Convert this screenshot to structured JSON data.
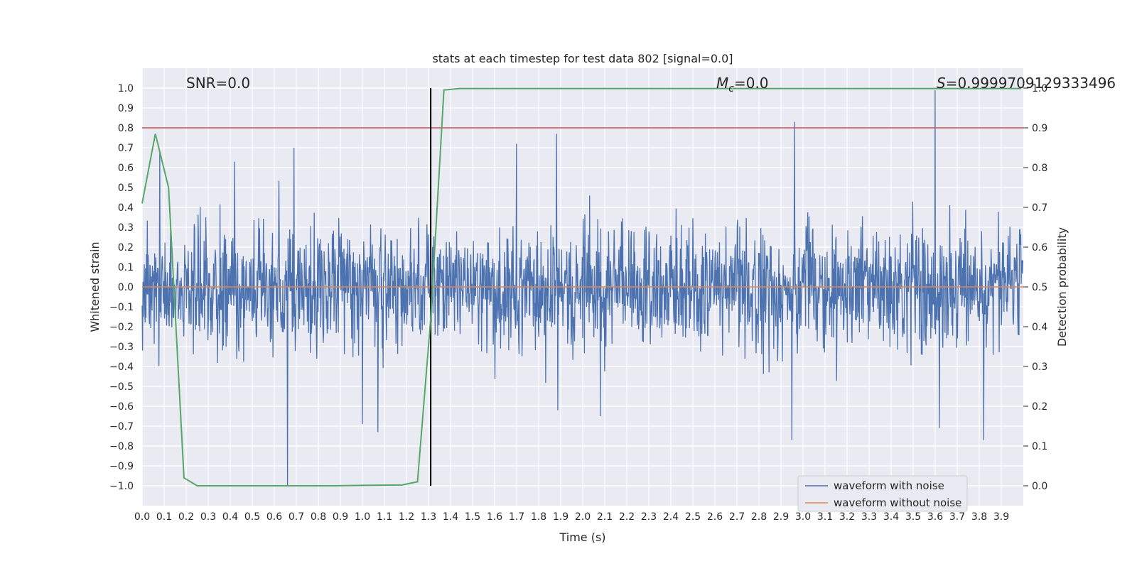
{
  "chart_data": {
    "type": "line",
    "title": "stats at each timestep for test data 802 [signal=0.0]",
    "xlabel": "Time (s)",
    "ylabel": "Whitened strain",
    "y2label": "Detection probability",
    "xlim": [
      0.0,
      4.0
    ],
    "ylim": [
      -1.1,
      1.1
    ],
    "y2lim": [
      -0.05,
      1.05
    ],
    "x_ticks": [
      0.0,
      0.1,
      0.2,
      0.3,
      0.4,
      0.5,
      0.6,
      0.7,
      0.8,
      0.9,
      1.0,
      1.1,
      1.2,
      1.3,
      1.4,
      1.5,
      1.6,
      1.7,
      1.8,
      1.9,
      2.0,
      2.1,
      2.2,
      2.3,
      2.4,
      2.5,
      2.6,
      2.7,
      2.8,
      2.9,
      3.0,
      3.1,
      3.2,
      3.3,
      3.4,
      3.5,
      3.6,
      3.7,
      3.8,
      3.9
    ],
    "y_ticks": [
      -1.0,
      -0.9,
      -0.8,
      -0.7,
      -0.6,
      -0.5,
      -0.4,
      -0.3,
      -0.2,
      -0.1,
      0.0,
      0.1,
      0.2,
      0.3,
      0.4,
      0.5,
      0.6,
      0.7,
      0.8,
      0.9,
      1.0
    ],
    "y2_ticks": [
      0.0,
      0.1,
      0.2,
      0.3,
      0.4,
      0.5,
      0.6,
      0.7,
      0.8,
      0.9,
      1.0
    ],
    "grid": true,
    "legend_position": "bottom-right",
    "annotations": {
      "snr": "SNR=0.0",
      "mc_symbol": "M",
      "mc_sub": "c",
      "mc_value": "=0.0",
      "s_symbol": "S",
      "s_value": "=0.9999709129333496"
    },
    "noise_series": {
      "name": "waveform with noise",
      "color": "#4c72b0",
      "amplitude_typical": 0.35,
      "peaks": [
        {
          "x": 0.08,
          "y": 0.68
        },
        {
          "x": 0.42,
          "y": 0.63
        },
        {
          "x": 0.69,
          "y": 0.7
        },
        {
          "x": 0.66,
          "y": -1.0
        },
        {
          "x": 1.0,
          "y": -0.69
        },
        {
          "x": 1.07,
          "y": -0.73
        },
        {
          "x": 1.7,
          "y": 0.72
        },
        {
          "x": 1.88,
          "y": 0.77
        },
        {
          "x": 2.08,
          "y": -0.65
        },
        {
          "x": 2.95,
          "y": -0.77
        },
        {
          "x": 2.96,
          "y": 0.83
        },
        {
          "x": 3.6,
          "y": 0.99
        },
        {
          "x": 3.62,
          "y": -0.71
        },
        {
          "x": 3.82,
          "y": -0.77
        }
      ]
    },
    "clean_series": {
      "name": "waveform without noise",
      "color": "#dd8452",
      "y": 0.0
    },
    "probability_series": {
      "name": "Detection probability",
      "color": "#55a868",
      "x": [
        0.0,
        0.06,
        0.12,
        0.19,
        0.25,
        0.5,
        0.88,
        1.0,
        1.18,
        1.25,
        1.31,
        1.37,
        1.44,
        2.0,
        3.0,
        3.99
      ],
      "y": [
        0.71,
        0.885,
        0.75,
        0.02,
        0.0,
        0.0,
        0.0,
        0.001,
        0.002,
        0.01,
        0.42,
        0.995,
        0.999,
        0.999,
        0.999,
        0.999
      ]
    },
    "threshold": {
      "y2": 0.9,
      "color": "#c44e52"
    },
    "vertical_marker": {
      "x": 1.31,
      "color": "#000000"
    },
    "legend": [
      "waveform with noise",
      "waveform without noise"
    ]
  }
}
